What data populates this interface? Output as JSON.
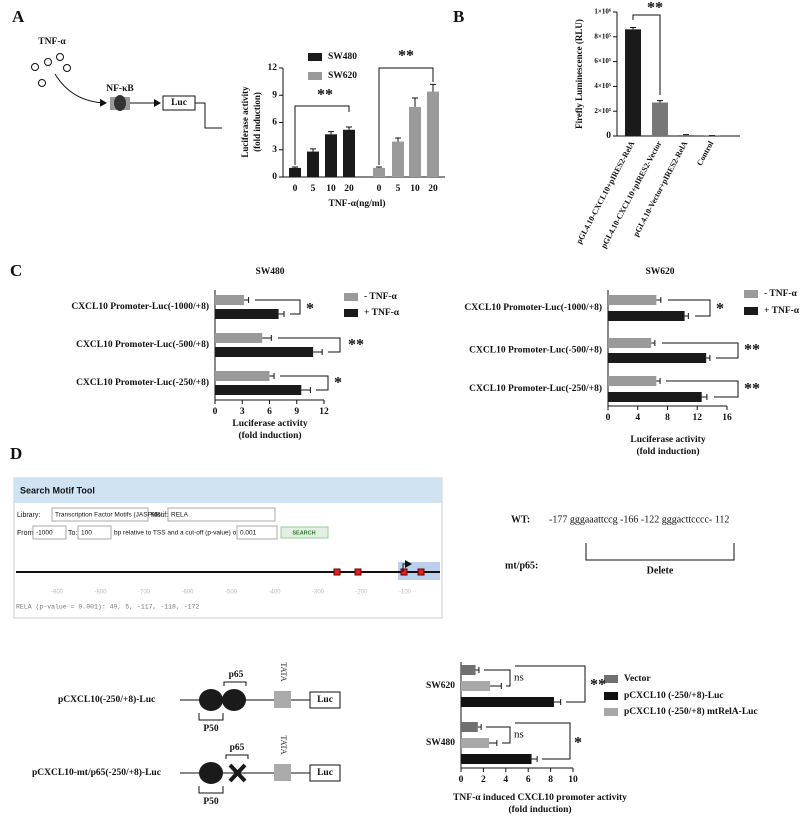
{
  "panels": [
    "A",
    "B",
    "C",
    "D"
  ],
  "diagram": {
    "tnf": "TNF-α",
    "nfkb": "NF-κB",
    "luc": "Luc"
  },
  "chart_data": [
    {
      "type": "bar",
      "categories": [
        "0",
        "5",
        "10",
        "20",
        "0",
        "5",
        "10",
        "20"
      ],
      "series": [
        {
          "name": "SW480",
          "color": "#1a1a1a",
          "values": [
            1,
            2.8,
            4.7,
            5.2,
            null,
            null,
            null,
            null
          ],
          "errors": [
            0.1,
            0.3,
            0.3,
            0.3,
            null,
            null,
            null,
            null
          ]
        },
        {
          "name": "SW620",
          "color": "#9a9a9a",
          "values": [
            null,
            null,
            null,
            null,
            1,
            3.9,
            7.7,
            9.4
          ],
          "errors": [
            null,
            null,
            null,
            null,
            0.1,
            0.4,
            1,
            0.8
          ]
        }
      ],
      "ylim": [
        0,
        12
      ],
      "yticks": [
        0,
        3,
        6,
        9,
        12
      ],
      "ylabel": [
        "Luciferase activity",
        "(fold induction)"
      ],
      "xlabel": "TNF-α(ng/ml)",
      "annotations": [
        "**",
        "**"
      ],
      "legend": "top"
    },
    {
      "type": "bar",
      "categories": [
        "pGL4.10-CXCL10+pIRES2-RelA",
        "pGL4.10-CXCL10+pIRES2-Vector",
        "pGL4.10-Vector+pIRES2-RelA",
        "Control"
      ],
      "values": [
        860000,
        270000,
        8000,
        2000
      ],
      "errors": [
        15000,
        15000,
        3000,
        1000
      ],
      "colors": [
        "#1a1a1a",
        "#777777",
        "#777777",
        "#777777"
      ],
      "ylim": [
        0,
        1000000
      ],
      "yticks": [
        0,
        {
          "value": 200000,
          "label": "2×10⁵"
        },
        {
          "value": 400000,
          "label": "4×10⁵"
        },
        {
          "value": 600000,
          "label": "6×10⁵"
        },
        {
          "value": 800000,
          "label": "8×10⁵"
        },
        {
          "value": 1000000,
          "label": "1×10⁶"
        }
      ],
      "ylabel": [
        "Firefly Luminescence (RLU)"
      ],
      "annotations": [
        "**"
      ]
    },
    {
      "type": "bar",
      "horizontal": true,
      "title": "SW480",
      "categories": [
        "CXCL10 Promoter-Luc(-1000/+8)",
        "CXCL10 Promoter-Luc(-500/+8)",
        "CXCL10 Promoter-Luc(-250/+8)"
      ],
      "series": [
        {
          "name": "-  TNF-α",
          "color": "#9a9a9a",
          "values": [
            3.2,
            5.2,
            6
          ],
          "errors": [
            0.5,
            1,
            0.5
          ]
        },
        {
          "name": "+  TNF-α",
          "color": "#1a1a1a",
          "values": [
            7,
            10.8,
            9.5
          ],
          "errors": [
            0.6,
            1,
            1
          ]
        }
      ],
      "xlim": [
        0,
        12
      ],
      "xticks": [
        0,
        3,
        6,
        9,
        12
      ],
      "xlabel": [
        "Luciferase activity",
        "(fold induction)"
      ],
      "annotations": [
        "*",
        "**",
        "*"
      ]
    },
    {
      "type": "bar",
      "horizontal": true,
      "title": "SW620",
      "categories": [
        "CXCL10 Promoter-Luc(-1000/+8)",
        "CXCL10 Promoter-Luc(-500/+8)",
        "CXCL10 Promoter-Luc(-250/+8)"
      ],
      "series": [
        {
          "name": "-  TNF-α",
          "color": "#9a9a9a",
          "values": [
            6.5,
            5.8,
            6.5
          ],
          "errors": [
            0.6,
            0.5,
            0.5
          ]
        },
        {
          "name": "+  TNF-α",
          "color": "#1a1a1a",
          "values": [
            10.3,
            13.2,
            12.6
          ],
          "errors": [
            0.5,
            0.5,
            0.7
          ]
        }
      ],
      "xlim": [
        0,
        16
      ],
      "xticks": [
        0,
        4,
        8,
        12,
        16
      ],
      "xlabel": [
        "Luciferase activity",
        "(fold induction)"
      ],
      "annotations": [
        "*",
        "**",
        "**"
      ]
    },
    {
      "type": "bar",
      "horizontal": true,
      "categories": [
        "SW620",
        "SW480"
      ],
      "series": [
        {
          "name": "Vector",
          "color": "#707070",
          "values": [
            1.3,
            1.5
          ],
          "errors": [
            0.3,
            0.3
          ]
        },
        {
          "name": "pCXCL10 (-250/+8)-Luc",
          "color": "#111111",
          "values": [
            8.3,
            6.3
          ],
          "errors": [
            0.6,
            0.5
          ]
        },
        {
          "name": "pCXCL10 (-250/+8) mtRelA-Luc",
          "color": "#a8a8a8",
          "values": [
            2.6,
            2.5
          ],
          "errors": [
            1,
            0.7
          ]
        }
      ],
      "xlim": [
        0,
        10
      ],
      "xticks": [
        0,
        2,
        4,
        6,
        8,
        10
      ],
      "xlabel": [
        "TNF-α induced CXCL10 promoter activity",
        "(fold induction)"
      ],
      "annotations": [
        "ns",
        "**",
        "ns",
        "*"
      ]
    }
  ],
  "motif_tool": {
    "title": "Search Motif Tool",
    "library_label": "Library:",
    "library": "Transcription Factor Motifs (JASPAR",
    "motif_label": "Motif:",
    "motif": "RELA",
    "from_label": "From:",
    "from": "-1000",
    "to_label": "To:",
    "to": "100",
    "cutoff_label": "bp relative to TSS and a cut-off (p-value) of:",
    "cutoff": "0.001",
    "button": "SEARCH",
    "track_ticks": [
      "-900",
      "-800",
      "-700",
      "-600",
      "-500",
      "-400",
      "-300",
      "-200",
      "-100"
    ],
    "result": "RELA (p-value = 0.001): 49, 5, -117, -118, -172"
  },
  "sequence": {
    "wt_label": "WT:",
    "wt": "-177 gggaaattccg -166  -122 gggacttcccc- 112",
    "mt_label": "mt/p65:",
    "note": "Delete"
  },
  "constructs": {
    "construct1": "pCXCL10(-250/+8)-Luc",
    "construct2": "pCXCL10-mt/p65(-250/+8)-Luc",
    "p50": "P50",
    "p65": "p65",
    "tata": "TATA",
    "luc": "Luc"
  }
}
